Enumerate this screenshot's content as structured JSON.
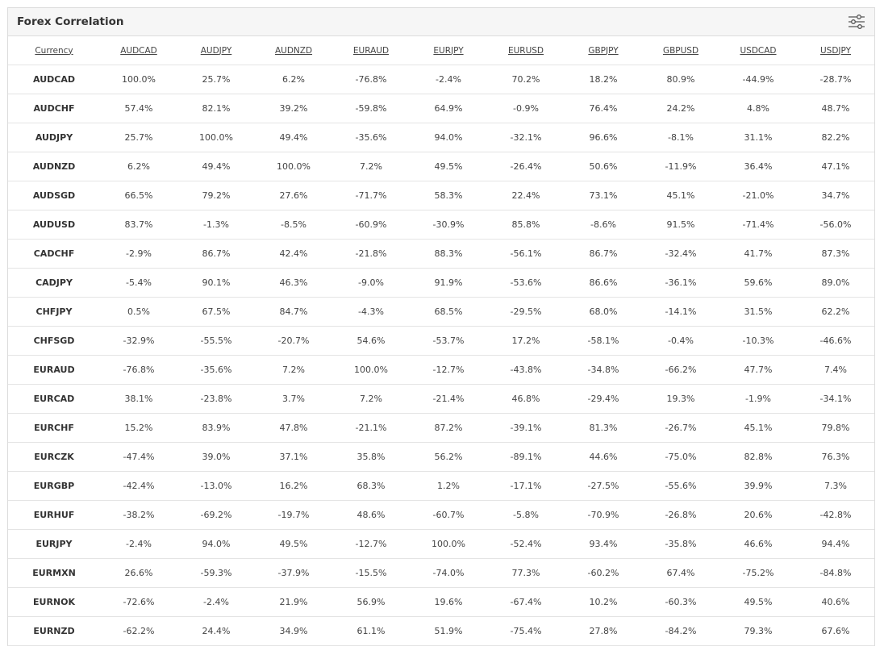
{
  "header": {
    "title": "Forex Correlation"
  },
  "table": {
    "columns": [
      "Currency",
      "AUDCAD",
      "AUDJPY",
      "AUDNZD",
      "EURAUD",
      "EURJPY",
      "EURUSD",
      "GBPJPY",
      "GBPUSD",
      "USDCAD",
      "USDJPY"
    ],
    "rows": [
      {
        "label": "AUDCAD",
        "cells": [
          "100.0%",
          "25.7%",
          "6.2%",
          "-76.8%",
          "-2.4%",
          "70.2%",
          "18.2%",
          "80.9%",
          "-44.9%",
          "-28.7%"
        ]
      },
      {
        "label": "AUDCHF",
        "cells": [
          "57.4%",
          "82.1%",
          "39.2%",
          "-59.8%",
          "64.9%",
          "-0.9%",
          "76.4%",
          "24.2%",
          "4.8%",
          "48.7%"
        ]
      },
      {
        "label": "AUDJPY",
        "cells": [
          "25.7%",
          "100.0%",
          "49.4%",
          "-35.6%",
          "94.0%",
          "-32.1%",
          "96.6%",
          "-8.1%",
          "31.1%",
          "82.2%"
        ]
      },
      {
        "label": "AUDNZD",
        "cells": [
          "6.2%",
          "49.4%",
          "100.0%",
          "7.2%",
          "49.5%",
          "-26.4%",
          "50.6%",
          "-11.9%",
          "36.4%",
          "47.1%"
        ]
      },
      {
        "label": "AUDSGD",
        "cells": [
          "66.5%",
          "79.2%",
          "27.6%",
          "-71.7%",
          "58.3%",
          "22.4%",
          "73.1%",
          "45.1%",
          "-21.0%",
          "34.7%"
        ]
      },
      {
        "label": "AUDUSD",
        "cells": [
          "83.7%",
          "-1.3%",
          "-8.5%",
          "-60.9%",
          "-30.9%",
          "85.8%",
          "-8.6%",
          "91.5%",
          "-71.4%",
          "-56.0%"
        ]
      },
      {
        "label": "CADCHF",
        "cells": [
          "-2.9%",
          "86.7%",
          "42.4%",
          "-21.8%",
          "88.3%",
          "-56.1%",
          "86.7%",
          "-32.4%",
          "41.7%",
          "87.3%"
        ]
      },
      {
        "label": "CADJPY",
        "cells": [
          "-5.4%",
          "90.1%",
          "46.3%",
          "-9.0%",
          "91.9%",
          "-53.6%",
          "86.6%",
          "-36.1%",
          "59.6%",
          "89.0%"
        ]
      },
      {
        "label": "CHFJPY",
        "cells": [
          "0.5%",
          "67.5%",
          "84.7%",
          "-4.3%",
          "68.5%",
          "-29.5%",
          "68.0%",
          "-14.1%",
          "31.5%",
          "62.2%"
        ]
      },
      {
        "label": "CHFSGD",
        "cells": [
          "-32.9%",
          "-55.5%",
          "-20.7%",
          "54.6%",
          "-53.7%",
          "17.2%",
          "-58.1%",
          "-0.4%",
          "-10.3%",
          "-46.6%"
        ]
      },
      {
        "label": "EURAUD",
        "cells": [
          "-76.8%",
          "-35.6%",
          "7.2%",
          "100.0%",
          "-12.7%",
          "-43.8%",
          "-34.8%",
          "-66.2%",
          "47.7%",
          "7.4%"
        ]
      },
      {
        "label": "EURCAD",
        "cells": [
          "38.1%",
          "-23.8%",
          "3.7%",
          "7.2%",
          "-21.4%",
          "46.8%",
          "-29.4%",
          "19.3%",
          "-1.9%",
          "-34.1%"
        ]
      },
      {
        "label": "EURCHF",
        "cells": [
          "15.2%",
          "83.9%",
          "47.8%",
          "-21.1%",
          "87.2%",
          "-39.1%",
          "81.3%",
          "-26.7%",
          "45.1%",
          "79.8%"
        ]
      },
      {
        "label": "EURCZK",
        "cells": [
          "-47.4%",
          "39.0%",
          "37.1%",
          "35.8%",
          "56.2%",
          "-89.1%",
          "44.6%",
          "-75.0%",
          "82.8%",
          "76.3%"
        ]
      },
      {
        "label": "EURGBP",
        "cells": [
          "-42.4%",
          "-13.0%",
          "16.2%",
          "68.3%",
          "1.2%",
          "-17.1%",
          "-27.5%",
          "-55.6%",
          "39.9%",
          "7.3%"
        ]
      },
      {
        "label": "EURHUF",
        "cells": [
          "-38.2%",
          "-69.2%",
          "-19.7%",
          "48.6%",
          "-60.7%",
          "-5.8%",
          "-70.9%",
          "-26.8%",
          "20.6%",
          "-42.8%"
        ]
      },
      {
        "label": "EURJPY",
        "cells": [
          "-2.4%",
          "94.0%",
          "49.5%",
          "-12.7%",
          "100.0%",
          "-52.4%",
          "93.4%",
          "-35.8%",
          "46.6%",
          "94.4%"
        ]
      },
      {
        "label": "EURMXN",
        "cells": [
          "26.6%",
          "-59.3%",
          "-37.9%",
          "-15.5%",
          "-74.0%",
          "77.3%",
          "-60.2%",
          "67.4%",
          "-75.2%",
          "-84.8%"
        ]
      },
      {
        "label": "EURNOK",
        "cells": [
          "-72.6%",
          "-2.4%",
          "21.9%",
          "56.9%",
          "19.6%",
          "-67.4%",
          "10.2%",
          "-60.3%",
          "49.5%",
          "40.6%"
        ]
      },
      {
        "label": "EURNZD",
        "cells": [
          "-62.2%",
          "24.4%",
          "34.9%",
          "61.1%",
          "51.9%",
          "-75.4%",
          "27.8%",
          "-84.2%",
          "79.3%",
          "67.6%"
        ]
      }
    ]
  }
}
